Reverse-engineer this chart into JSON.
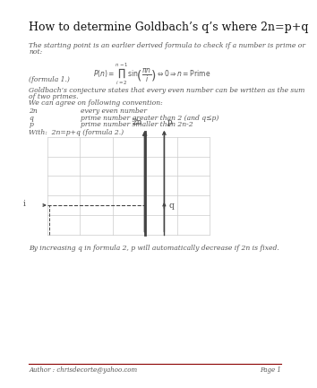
{
  "title": "How to determine Goldbach’s q’s where 2n=p+q",
  "bg_color": "#ffffff",
  "text_color": "#000000",
  "footer_line_color": "#8B0000",
  "author_text": "Author : chrisdecorte@yahoo.com",
  "page_text": "Page 1",
  "para1_line1": "The starting point is an earlier derived formula to check if a number is prime or",
  "para1_line2": "not:",
  "formula1_label": "(formula 1.)",
  "para2_line1": "Goldbach’s conjecture states that every even number can be written as the sum",
  "para2_line2": "of two primes.",
  "para2_line3": "We can agree on following convention:",
  "conv_rows": [
    [
      "2n",
      "every even number"
    ],
    [
      "q",
      "prime number greater than 2 (and q≤p)"
    ],
    [
      "p",
      "prime number smaller than 2n-2"
    ]
  ],
  "with_text": "With:  2n=p+q (formula 2.)",
  "para3": "By increasing q in formula 2, p will automatically decrease if 2n is fixed.",
  "graph_label_2n": "2n",
  "graph_label_p": "p",
  "graph_label_i": "i",
  "graph_label_q": "q",
  "grid_color": "#cccccc",
  "line_color": "#444444",
  "text_gray": "#555555",
  "title_fontsize": 9.0,
  "body_fontsize": 5.5,
  "label_fontsize": 6.5
}
